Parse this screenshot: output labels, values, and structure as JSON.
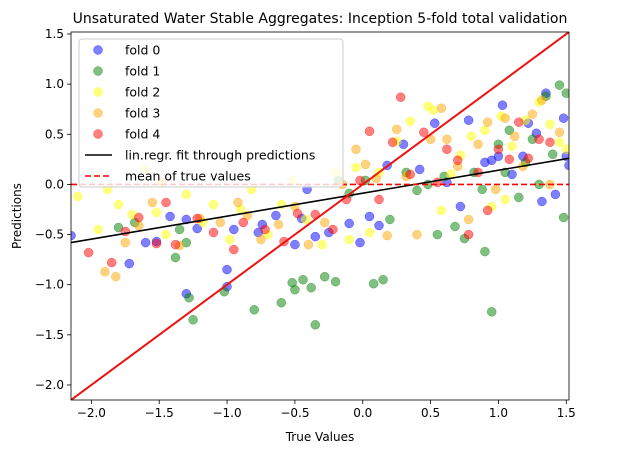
{
  "chart_data": {
    "type": "scatter",
    "title": "Unsaturated Water Stable Aggregates: Inception 5-fold total validation",
    "xlabel": "True Values",
    "ylabel": "Predictions",
    "xlim": [
      -2.15,
      1.52
    ],
    "ylim": [
      -2.15,
      1.52
    ],
    "xticks": [
      -2.0,
      -1.5,
      -1.0,
      -0.5,
      0.0,
      0.5,
      1.0,
      1.5
    ],
    "yticks": [
      -2.0,
      -1.5,
      -1.0,
      -0.5,
      0.0,
      0.5,
      1.0,
      1.5
    ],
    "xtick_labels": [
      "−2.0",
      "−1.5",
      "−1.0",
      "−0.5",
      "0.0",
      "0.5",
      "1.0",
      "1.5"
    ],
    "ytick_labels": [
      "−2.0",
      "−1.5",
      "−1.0",
      "−0.5",
      "0.0",
      "0.5",
      "1.0",
      "1.5"
    ],
    "grid": false,
    "legend_position": "top-left",
    "series": [
      {
        "name": "fold 0",
        "color": "#0000ff",
        "points": [
          [
            -2.15,
            -0.51
          ],
          [
            -1.72,
            -0.79
          ],
          [
            -1.6,
            -0.58
          ],
          [
            -1.52,
            -0.57
          ],
          [
            -1.42,
            -0.32
          ],
          [
            -1.3,
            -1.09
          ],
          [
            -1.3,
            -0.35
          ],
          [
            -1.22,
            -0.44
          ],
          [
            -1.0,
            -0.85
          ],
          [
            -1.0,
            -1.02
          ],
          [
            -0.95,
            -0.45
          ],
          [
            -0.77,
            -0.48
          ],
          [
            -0.74,
            -0.4
          ],
          [
            -0.64,
            -0.31
          ],
          [
            -0.5,
            -0.6
          ],
          [
            -0.45,
            -0.34
          ],
          [
            -0.41,
            -0.05
          ],
          [
            -0.35,
            -0.52
          ],
          [
            -0.25,
            -0.48
          ],
          [
            -0.1,
            -0.39
          ],
          [
            -0.02,
            -0.58
          ],
          [
            0.05,
            -0.32
          ],
          [
            0.12,
            -0.41
          ],
          [
            0.18,
            0.19
          ],
          [
            0.3,
            0.4
          ],
          [
            0.42,
            0.15
          ],
          [
            0.53,
            0.61
          ],
          [
            0.62,
            0.02
          ],
          [
            0.72,
            -0.22
          ],
          [
            0.78,
            0.64
          ],
          [
            0.9,
            0.22
          ],
          [
            0.95,
            0.24
          ],
          [
            1.0,
            0.28
          ],
          [
            1.03,
            0.79
          ],
          [
            1.1,
            0.1
          ],
          [
            1.18,
            0.28
          ],
          [
            1.22,
            0.61
          ],
          [
            1.28,
            0.51
          ],
          [
            1.32,
            -0.17
          ],
          [
            1.35,
            0.91
          ],
          [
            1.42,
            -0.1
          ],
          [
            1.48,
            0.66
          ],
          [
            1.5,
            0.28
          ],
          [
            1.52,
            0.19
          ]
        ]
      },
      {
        "name": "fold 1",
        "color": "#008000",
        "points": [
          [
            -1.8,
            -0.43
          ],
          [
            -1.68,
            -0.38
          ],
          [
            -1.38,
            -0.73
          ],
          [
            -1.35,
            -0.45
          ],
          [
            -1.3,
            -0.58
          ],
          [
            -1.28,
            -1.13
          ],
          [
            -1.25,
            -1.35
          ],
          [
            -1.02,
            -1.07
          ],
          [
            -0.8,
            -1.25
          ],
          [
            -0.6,
            -1.18
          ],
          [
            -0.52,
            -0.98
          ],
          [
            -0.5,
            -1.05
          ],
          [
            -0.44,
            -0.95
          ],
          [
            -0.38,
            -1.03
          ],
          [
            -0.35,
            -1.4
          ],
          [
            -0.28,
            -0.92
          ],
          [
            -0.2,
            -0.97
          ],
          [
            -0.18,
            0.04
          ],
          [
            -0.1,
            -0.09
          ],
          [
            0.02,
            0.04
          ],
          [
            0.08,
            -0.99
          ],
          [
            0.15,
            -0.95
          ],
          [
            0.2,
            -0.35
          ],
          [
            0.32,
            0.12
          ],
          [
            0.4,
            -0.06
          ],
          [
            0.48,
            0.0
          ],
          [
            0.55,
            -0.5
          ],
          [
            0.6,
            0.08
          ],
          [
            0.68,
            -0.42
          ],
          [
            0.75,
            -0.54
          ],
          [
            0.82,
            0.12
          ],
          [
            0.88,
            -0.05
          ],
          [
            0.9,
            -0.67
          ],
          [
            0.95,
            -1.27
          ],
          [
            1.0,
            0.4
          ],
          [
            1.05,
            0.12
          ],
          [
            1.08,
            0.54
          ],
          [
            1.15,
            -0.13
          ],
          [
            1.2,
            0.22
          ],
          [
            1.25,
            0.45
          ],
          [
            1.3,
            0.0
          ],
          [
            1.35,
            0.88
          ],
          [
            1.4,
            0.3
          ],
          [
            1.45,
            0.99
          ],
          [
            1.48,
            -0.33
          ],
          [
            1.5,
            0.91
          ]
        ]
      },
      {
        "name": "fold 2",
        "color": "#ffff00",
        "points": [
          [
            -2.1,
            -0.12
          ],
          [
            -1.95,
            -0.45
          ],
          [
            -1.88,
            -0.05
          ],
          [
            -1.8,
            -0.2
          ],
          [
            -1.7,
            -0.3
          ],
          [
            -1.6,
            0.15
          ],
          [
            -1.52,
            -0.28
          ],
          [
            -1.45,
            -0.5
          ],
          [
            -1.3,
            -0.1
          ],
          [
            -1.18,
            -0.38
          ],
          [
            -1.1,
            -0.2
          ],
          [
            -0.98,
            -0.55
          ],
          [
            -0.9,
            -0.25
          ],
          [
            -0.82,
            -0.05
          ],
          [
            -0.7,
            -0.5
          ],
          [
            -0.6,
            -0.2
          ],
          [
            -0.52,
            0.04
          ],
          [
            -0.42,
            -0.35
          ],
          [
            -0.3,
            -0.6
          ],
          [
            -0.2,
            0.12
          ],
          [
            -0.1,
            -0.55
          ],
          [
            -0.05,
            0.17
          ],
          [
            0.05,
            -0.48
          ],
          [
            0.12,
            0.12
          ],
          [
            0.25,
            0.43
          ],
          [
            0.35,
            0.63
          ],
          [
            0.48,
            0.78
          ],
          [
            0.52,
            0.74
          ],
          [
            0.58,
            -0.26
          ],
          [
            0.65,
            0.1
          ],
          [
            0.72,
            0.29
          ],
          [
            0.8,
            0.48
          ],
          [
            0.9,
            0.54
          ],
          [
            0.95,
            -0.22
          ],
          [
            1.02,
            0.68
          ],
          [
            1.05,
            -0.15
          ],
          [
            1.1,
            0.38
          ],
          [
            1.2,
            0.64
          ],
          [
            1.3,
            0.82
          ],
          [
            1.38,
            0.6
          ],
          [
            1.45,
            0.42
          ],
          [
            1.5,
            0.35
          ]
        ]
      },
      {
        "name": "fold 3",
        "color": "#ffa500",
        "points": [
          [
            -1.9,
            -0.87
          ],
          [
            -1.82,
            -0.92
          ],
          [
            -1.75,
            -0.58
          ],
          [
            -1.65,
            -0.41
          ],
          [
            -1.55,
            -0.18
          ],
          [
            -1.48,
            0.02
          ],
          [
            -1.35,
            -0.61
          ],
          [
            -1.2,
            -0.34
          ],
          [
            -1.05,
            -0.38
          ],
          [
            -0.92,
            -0.18
          ],
          [
            -0.85,
            -0.31
          ],
          [
            -0.75,
            -0.55
          ],
          [
            -0.62,
            -0.4
          ],
          [
            -0.5,
            -0.22
          ],
          [
            -0.4,
            -0.6
          ],
          [
            -0.28,
            -0.38
          ],
          [
            -0.15,
            0.0
          ],
          [
            -0.05,
            0.35
          ],
          [
            0.02,
            0.2
          ],
          [
            0.1,
            0.06
          ],
          [
            0.18,
            -0.51
          ],
          [
            0.25,
            0.55
          ],
          [
            0.32,
            0.08
          ],
          [
            0.4,
            -0.5
          ],
          [
            0.5,
            0.45
          ],
          [
            0.58,
            0.76
          ],
          [
            0.62,
            0.45
          ],
          [
            0.7,
            0.18
          ],
          [
            0.78,
            -0.35
          ],
          [
            0.85,
            0.4
          ],
          [
            0.92,
            0.62
          ],
          [
            0.98,
            -0.05
          ],
          [
            1.05,
            0.66
          ],
          [
            1.12,
            0.48
          ],
          [
            1.18,
            0.18
          ],
          [
            1.25,
            0.7
          ],
          [
            1.32,
            0.84
          ],
          [
            1.38,
            0.0
          ],
          [
            1.45,
            0.52
          ]
        ]
      },
      {
        "name": "fold 4",
        "color": "#ff0000",
        "points": [
          [
            -2.02,
            -0.68
          ],
          [
            -1.85,
            -0.78
          ],
          [
            -1.75,
            -0.47
          ],
          [
            -1.65,
            -0.33
          ],
          [
            -1.52,
            -0.59
          ],
          [
            -1.45,
            -0.18
          ],
          [
            -1.38,
            -0.6
          ],
          [
            -1.22,
            -0.34
          ],
          [
            -1.1,
            -0.48
          ],
          [
            -0.95,
            -0.65
          ],
          [
            -0.88,
            -0.38
          ],
          [
            -0.72,
            -0.45
          ],
          [
            -0.58,
            -0.57
          ],
          [
            -0.48,
            -0.29
          ],
          [
            -0.35,
            -0.3
          ],
          [
            -0.22,
            -0.45
          ],
          [
            -0.12,
            -0.15
          ],
          [
            -0.02,
            0.04
          ],
          [
            0.05,
            0.53
          ],
          [
            0.12,
            -0.15
          ],
          [
            0.22,
            0.42
          ],
          [
            0.28,
            0.87
          ],
          [
            0.35,
            0.1
          ],
          [
            0.45,
            0.52
          ],
          [
            0.55,
            0.02
          ],
          [
            0.62,
            0.35
          ],
          [
            0.7,
            0.24
          ],
          [
            0.78,
            -0.5
          ],
          [
            0.85,
            0.12
          ],
          [
            0.92,
            -0.26
          ],
          [
            1.0,
            0.35
          ],
          [
            1.08,
            0.25
          ],
          [
            1.15,
            0.62
          ],
          [
            1.22,
            0.26
          ],
          [
            1.3,
            0.45
          ],
          [
            1.38,
            0.42
          ]
        ]
      }
    ],
    "lines": [
      {
        "name": "lin.regr. fit through predictions",
        "color": "#000000",
        "style": "solid",
        "x": [
          -2.15,
          1.52
        ],
        "y": [
          -0.58,
          0.26
        ]
      },
      {
        "name": "mean of true values",
        "color": "#ff0000",
        "style": "dashed",
        "x": [
          -2.15,
          1.52
        ],
        "y": [
          0.0,
          0.0
        ]
      },
      {
        "name": "",
        "color": "#ee1111",
        "style": "solid",
        "x": [
          -2.15,
          1.52
        ],
        "y": [
          -2.15,
          1.52
        ]
      }
    ]
  }
}
